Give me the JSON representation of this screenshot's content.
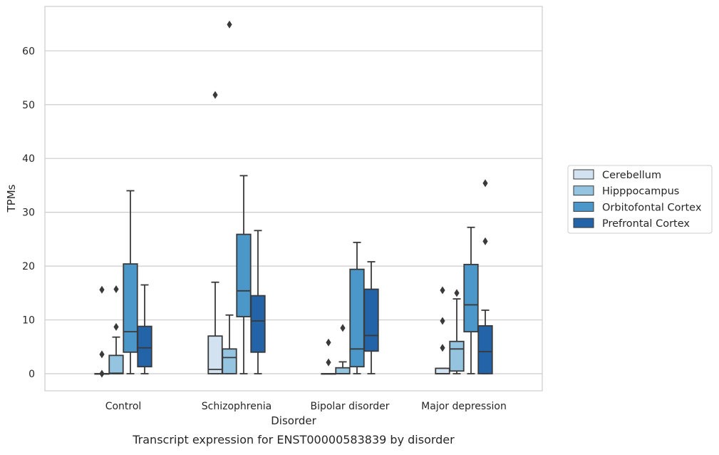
{
  "chart_data": {
    "type": "box",
    "caption": "Transcript expression for ENST00000583839 by disorder",
    "xlabel": "Disorder",
    "ylabel": "TPMs",
    "categories": [
      "Control",
      "Schizophrenia",
      "Bipolar disorder",
      "Major depression"
    ],
    "ylim": [
      -3,
      66
    ],
    "yticks": [
      0,
      10,
      20,
      30,
      40,
      50,
      60
    ],
    "grid": true,
    "legend_position": "right",
    "series": [
      {
        "name": "Cerebellum",
        "color": "#d3e2f0",
        "boxes": [
          {
            "min": 0,
            "q1": 0,
            "median": 0,
            "q3": 0,
            "max": 0,
            "outliers": [
              15.6,
              3.6,
              0
            ]
          },
          {
            "min": 0,
            "q1": 0,
            "median": 0.8,
            "q3": 7.0,
            "max": 17.0,
            "outliers": [
              51.8
            ]
          },
          {
            "min": 0,
            "q1": 0,
            "median": 0,
            "q3": 0,
            "max": 0,
            "outliers": [
              5.8,
              2.1
            ]
          },
          {
            "min": 0,
            "q1": 0,
            "median": 0,
            "q3": 1.0,
            "max": 1.0,
            "outliers": [
              15.5,
              9.8,
              4.8
            ]
          }
        ]
      },
      {
        "name": "Hipppocampus",
        "color": "#94c4df",
        "boxes": [
          {
            "min": 0,
            "q1": 0,
            "median": 0.1,
            "q3": 3.4,
            "max": 6.8,
            "outliers": [
              15.7,
              8.7
            ]
          },
          {
            "min": 0,
            "q1": 0,
            "median": 3.0,
            "q3": 4.6,
            "max": 10.9,
            "outliers": [
              64.9
            ]
          },
          {
            "min": 0,
            "q1": 0,
            "median": 0,
            "q3": 1.1,
            "max": 2.2,
            "outliers": [
              8.5
            ]
          },
          {
            "min": 0,
            "q1": 0.5,
            "median": 4.6,
            "q3": 6.0,
            "max": 13.9,
            "outliers": [
              15.0
            ]
          }
        ]
      },
      {
        "name": "Orbitofontal Cortex",
        "color": "#4b97c9",
        "boxes": [
          {
            "min": 0,
            "q1": 4.0,
            "median": 7.8,
            "q3": 20.4,
            "max": 34.0,
            "outliers": []
          },
          {
            "min": 0,
            "q1": 10.6,
            "median": 15.4,
            "q3": 25.9,
            "max": 36.8,
            "outliers": []
          },
          {
            "min": 0,
            "q1": 1.3,
            "median": 4.6,
            "q3": 19.4,
            "max": 24.4,
            "outliers": []
          },
          {
            "min": 0,
            "q1": 7.8,
            "median": 12.8,
            "q3": 20.3,
            "max": 27.2,
            "outliers": []
          }
        ]
      },
      {
        "name": "Prefrontal Cortex",
        "color": "#2363a8",
        "boxes": [
          {
            "min": 0,
            "q1": 1.3,
            "median": 4.8,
            "q3": 8.8,
            "max": 16.5,
            "outliers": []
          },
          {
            "min": 0,
            "q1": 4.0,
            "median": 9.8,
            "q3": 14.5,
            "max": 26.6,
            "outliers": []
          },
          {
            "min": 0,
            "q1": 4.2,
            "median": 7.1,
            "q3": 15.7,
            "max": 20.8,
            "outliers": []
          },
          {
            "min": 0,
            "q1": 0,
            "median": 4.1,
            "q3": 8.9,
            "max": 11.8,
            "outliers": [
              35.4,
              24.6
            ]
          }
        ]
      }
    ]
  }
}
